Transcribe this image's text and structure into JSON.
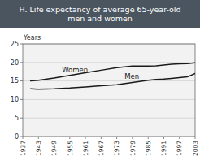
{
  "chart_data": {
    "type": "line",
    "title": "H. Life expectancy of average 65-year-old\nmen and women",
    "ylabel": "Years",
    "x": [
      1940,
      1943,
      1949,
      1955,
      1961,
      1967,
      1973,
      1979,
      1985,
      1988,
      1991,
      1994,
      1997,
      2000,
      2003
    ],
    "series": [
      {
        "color": "#1a1a1a",
        "values": [
          15.0,
          15.2,
          15.8,
          16.5,
          17.2,
          17.9,
          18.6,
          19.0,
          19.0,
          19.1,
          19.3,
          19.5,
          19.6,
          19.7,
          19.9
        ]
      },
      {
        "color": "#1a1a1a",
        "values": [
          12.9,
          12.8,
          12.9,
          13.1,
          13.4,
          13.7,
          14.0,
          14.6,
          15.2,
          15.4,
          15.5,
          15.7,
          15.9,
          16.1,
          17.0
        ]
      }
    ],
    "annotations": [
      {
        "text": "Women",
        "x": 1952,
        "y": 17.3
      },
      {
        "text": "Men",
        "x": 1976,
        "y": 15.5
      }
    ],
    "xlim": [
      1937,
      2003
    ],
    "ylim": [
      0,
      25
    ],
    "xticks": [
      1937,
      1943,
      1949,
      1955,
      1961,
      1967,
      1973,
      1979,
      1985,
      1991,
      1997,
      2003
    ],
    "yticks": [
      0,
      5,
      10,
      15,
      20,
      25
    ],
    "grid": true
  }
}
